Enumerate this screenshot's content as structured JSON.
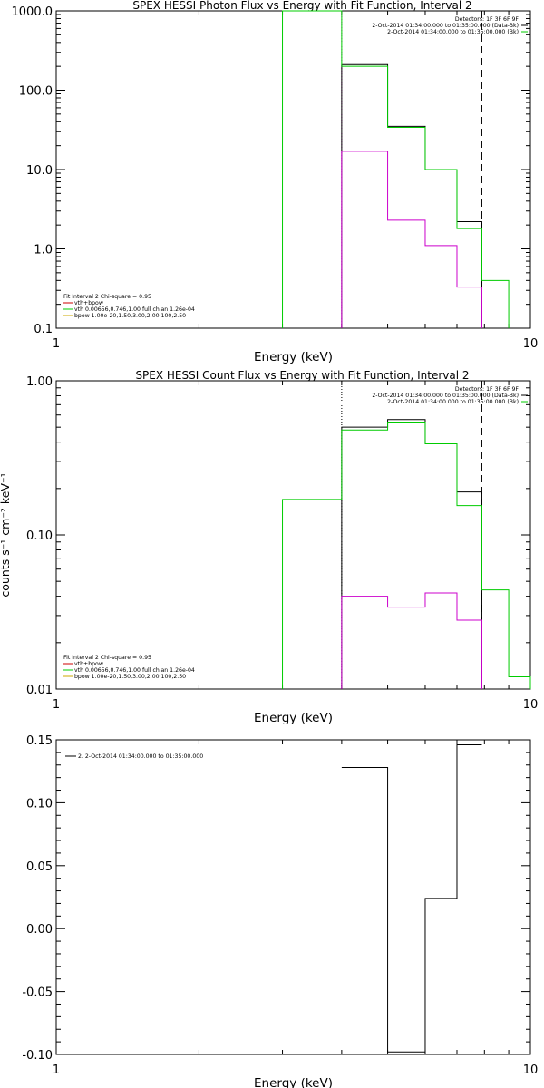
{
  "chart_data": [
    {
      "type": "line",
      "title": "SPEX HESSI Photon Flux vs Energy with Fit Function, Interval 2",
      "xlabel": "Energy (keV)",
      "ylabel": "",
      "xscale": "log",
      "yscale": "log",
      "xlim": [
        1,
        10
      ],
      "ylim": [
        0.1,
        1000
      ],
      "x_ticks": [
        "1",
        "10"
      ],
      "y_ticks": [
        "0.1",
        "1.0",
        "10.0",
        "100.0",
        "1000.0"
      ],
      "grid": false,
      "legend_position": "bottom-left",
      "legend_lines": [
        "Fit Interval 2   Chi-square = 0.95",
        "vth+bpow",
        "vth 0.00656,0.746,1.00  full chian 1.26e-04",
        "bpow 1.00e-20,1.50,3.00,2.00,100,2.50"
      ],
      "info_lines": [
        "Detectors: 1F 3F 6F 9F",
        "2-Oct-2014 01:34:00.000 to 01:35:00.000 (Data-Bk)",
        "2-Oct-2014 01:34:00.000 to 01:35:00.000 (Bk)"
      ],
      "vlines": [
        {
          "x": 4,
          "style": "dotted",
          "color": "#cc00cc"
        },
        {
          "x": 7.9,
          "style": "dashed",
          "color": "#000000"
        }
      ],
      "series": [
        {
          "color": "#000000",
          "step_edges": [
            4,
            5,
            6,
            7,
            7.9
          ],
          "values": [
            210,
            35,
            10,
            2.2
          ]
        },
        {
          "color": "#00cc00",
          "step_edges": [
            3,
            4,
            5,
            6,
            7,
            7.9,
            9
          ],
          "values": [
            1000,
            200,
            34,
            10,
            1.8,
            0.4
          ]
        },
        {
          "color": "#cc00cc",
          "step_edges": [
            4,
            5,
            6,
            7,
            7.9
          ],
          "values": [
            17,
            2.3,
            1.1,
            0.33
          ]
        }
      ]
    },
    {
      "type": "line",
      "title": "SPEX HESSI Count Flux vs Energy with Fit Function, Interval 2",
      "xlabel": "Energy (keV)",
      "ylabel": "counts s⁻¹ cm⁻² keV⁻¹",
      "xscale": "log",
      "yscale": "log",
      "xlim": [
        1,
        10
      ],
      "ylim": [
        0.01,
        1
      ],
      "x_ticks": [
        "1",
        "10"
      ],
      "y_ticks": [
        "0.01",
        "0.10",
        "1.00"
      ],
      "grid": false,
      "legend_position": "bottom-left",
      "legend_lines": [
        "Fit Interval 2   Chi-square = 0.95",
        "vth+bpow",
        "vth 0.00656,0.746,1.00  full chian 1.26e-04",
        "bpow 1.00e-20,1.50,3.00,2.00,100,2.50"
      ],
      "info_lines": [
        "Detectors: 1F 3F 6F 9F",
        "2-Oct-2014 01:34:00.000 to 01:35:00.000 (Data-Bk)",
        "2-Oct-2014 01:34:00.000 to 01:35:00.000 (Bk)"
      ],
      "vlines": [
        {
          "x": 4,
          "style": "dotted",
          "color": "#000000"
        },
        {
          "x": 7.9,
          "style": "dashed",
          "color": "#000000"
        }
      ],
      "series": [
        {
          "color": "#000000",
          "step_edges": [
            4,
            5,
            6,
            7,
            7.9
          ],
          "values": [
            0.5,
            0.56,
            0.39,
            0.19
          ]
        },
        {
          "color": "#00cc00",
          "step_edges": [
            3,
            4,
            5,
            6,
            7,
            7.9,
            9,
            10
          ],
          "values": [
            0.17,
            0.48,
            0.54,
            0.39,
            0.155,
            0.044,
            0.012
          ]
        },
        {
          "color": "#cc00cc",
          "step_edges": [
            4,
            5,
            6,
            7,
            7.9
          ],
          "values": [
            0.04,
            0.034,
            0.042,
            0.028
          ]
        }
      ]
    },
    {
      "type": "line",
      "title": "",
      "xlabel": "Energy (keV)",
      "ylabel": "",
      "xscale": "log",
      "yscale": "linear",
      "xlim": [
        1,
        10
      ],
      "ylim": [
        -0.1,
        0.15
      ],
      "x_ticks": [
        "1",
        "10"
      ],
      "y_ticks": [
        "-0.10",
        "-0.05",
        "0.00",
        "0.05",
        "0.10",
        "0.15"
      ],
      "grid": false,
      "legend_position": "top-left",
      "legend_lines": [
        "2.  2-Oct-2014 01:34:00.000 to 01:35:00.000"
      ],
      "info_lines": [],
      "vlines": [],
      "series": [
        {
          "color": "#000000",
          "step_edges": [
            4,
            5,
            6,
            7,
            7.9
          ],
          "values": [
            0.128,
            -0.098,
            0.024,
            0.146
          ]
        }
      ]
    }
  ]
}
